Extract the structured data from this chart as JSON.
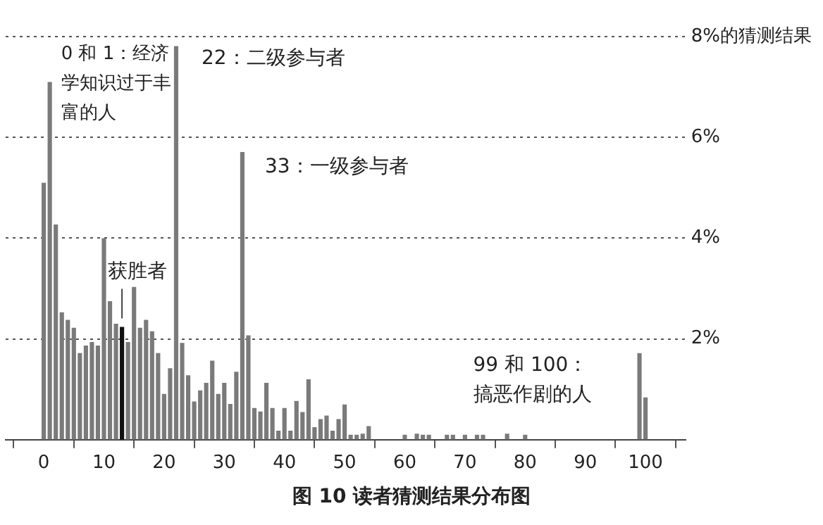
{
  "chart_data": {
    "type": "bar",
    "title": "图 10 读者猜测结果分布图",
    "x": [
      0,
      1,
      2,
      3,
      4,
      5,
      6,
      7,
      8,
      9,
      10,
      11,
      12,
      13,
      14,
      15,
      16,
      17,
      18,
      19,
      20,
      21,
      22,
      23,
      24,
      25,
      26,
      27,
      28,
      29,
      30,
      31,
      32,
      33,
      34,
      35,
      36,
      37,
      38,
      39,
      40,
      41,
      42,
      43,
      44,
      45,
      46,
      47,
      48,
      49,
      50,
      51,
      52,
      53,
      54,
      55,
      56,
      57,
      58,
      59,
      60,
      61,
      62,
      63,
      64,
      65,
      66,
      67,
      68,
      69,
      70,
      71,
      72,
      73,
      74,
      75,
      76,
      77,
      78,
      79,
      80,
      81,
      82,
      83,
      84,
      85,
      86,
      87,
      88,
      89,
      90,
      91,
      92,
      93,
      94,
      95,
      96,
      97,
      98,
      99,
      100
    ],
    "values": [
      5.1,
      7.1,
      4.27,
      2.53,
      2.38,
      2.22,
      1.72,
      1.87,
      1.94,
      1.87,
      4.0,
      2.75,
      2.3,
      2.24,
      1.94,
      3.03,
      2.22,
      2.38,
      2.15,
      1.72,
      0.91,
      1.42,
      7.81,
      1.92,
      1.28,
      0.76,
      0.98,
      1.13,
      1.57,
      0.91,
      1.13,
      0.71,
      1.35,
      5.71,
      2.07,
      0.63,
      0.56,
      1.13,
      0.63,
      0.18,
      0.63,
      0.18,
      0.77,
      0.55,
      1.2,
      0.25,
      0.41,
      0.48,
      0.18,
      0.41,
      0.7,
      0.1,
      0.1,
      0.12,
      0.27,
      0,
      0,
      0,
      0,
      0,
      0.1,
      0,
      0.12,
      0.1,
      0.1,
      0,
      0,
      0.1,
      0.1,
      0,
      0.1,
      0,
      0.1,
      0.1,
      0,
      0,
      0,
      0.12,
      0,
      0,
      0.1,
      0,
      0,
      0,
      0,
      0,
      0,
      0,
      0,
      0,
      0,
      0,
      0,
      0,
      0,
      0,
      0,
      0,
      0,
      1.72,
      0.84
    ],
    "colors": [
      "#7a7a7a",
      "#7a7a7a",
      "#7a7a7a",
      "#7a7a7a",
      "#7a7a7a",
      "#7a7a7a",
      "#7a7a7a",
      "#7a7a7a",
      "#7a7a7a",
      "#7a7a7a",
      "#7a7a7a",
      "#7a7a7a",
      "#7a7a7a",
      "#111111",
      "#7a7a7a",
      "#7a7a7a",
      "#7a7a7a",
      "#7a7a7a",
      "#7a7a7a",
      "#7a7a7a",
      "#7a7a7a",
      "#7a7a7a",
      "#7a7a7a",
      "#7a7a7a",
      "#7a7a7a",
      "#7a7a7a",
      "#7a7a7a",
      "#7a7a7a",
      "#7a7a7a",
      "#7a7a7a",
      "#7a7a7a",
      "#7a7a7a",
      "#7a7a7a",
      "#7a7a7a",
      "#7a7a7a",
      "#7a7a7a",
      "#7a7a7a",
      "#7a7a7a",
      "#7a7a7a",
      "#7a7a7a",
      "#7a7a7a",
      "#7a7a7a",
      "#7a7a7a",
      "#7a7a7a",
      "#7a7a7a",
      "#7a7a7a",
      "#7a7a7a",
      "#7a7a7a",
      "#7a7a7a",
      "#7a7a7a",
      "#7a7a7a",
      "#7a7a7a",
      "#7a7a7a",
      "#7a7a7a",
      "#7a7a7a",
      "#7a7a7a",
      "#7a7a7a",
      "#7a7a7a",
      "#7a7a7a",
      "#7a7a7a",
      "#7a7a7a",
      "#7a7a7a",
      "#7a7a7a",
      "#7a7a7a",
      "#7a7a7a",
      "#7a7a7a",
      "#7a7a7a",
      "#7a7a7a",
      "#7a7a7a",
      "#7a7a7a",
      "#7a7a7a",
      "#7a7a7a",
      "#7a7a7a",
      "#7a7a7a",
      "#7a7a7a",
      "#7a7a7a",
      "#7a7a7a",
      "#7a7a7a",
      "#7a7a7a",
      "#7a7a7a",
      "#7a7a7a",
      "#7a7a7a",
      "#7a7a7a",
      "#7a7a7a",
      "#7a7a7a",
      "#7a7a7a",
      "#7a7a7a",
      "#7a7a7a",
      "#7a7a7a",
      "#7a7a7a",
      "#7a7a7a",
      "#7a7a7a",
      "#7a7a7a",
      "#7a7a7a",
      "#7a7a7a",
      "#7a7a7a",
      "#7a7a7a",
      "#7a7a7a",
      "#7a7a7a",
      "#7a7a7a",
      "#7a7a7a"
    ],
    "xlim": [
      -1.2,
      101.5
    ],
    "xticks": [
      0,
      10,
      20,
      30,
      40,
      50,
      60,
      70,
      80,
      90,
      100
    ],
    "ylim": [
      0,
      8
    ],
    "yticks": [
      {
        "value": 2,
        "label": "2%"
      },
      {
        "value": 4,
        "label": "4%"
      },
      {
        "value": 6,
        "label": "6%"
      },
      {
        "value": 8,
        "label": "8%的猜测结果"
      }
    ],
    "grid": "y",
    "legend": false,
    "annotations": [
      {
        "text": "0 和 1：经济学知识过于丰富的人",
        "x": 1,
        "y": 7.1
      },
      {
        "text": "22：二级参与者",
        "x": 22,
        "y": 7.81
      },
      {
        "text": "33：一级参与者",
        "x": 33,
        "y": 5.71
      },
      {
        "text": "获胜者",
        "x": 13,
        "y": 2.24
      },
      {
        "text": "99 和 100：搞恶作剧的人",
        "x": 99,
        "y": 1.72
      }
    ]
  }
}
